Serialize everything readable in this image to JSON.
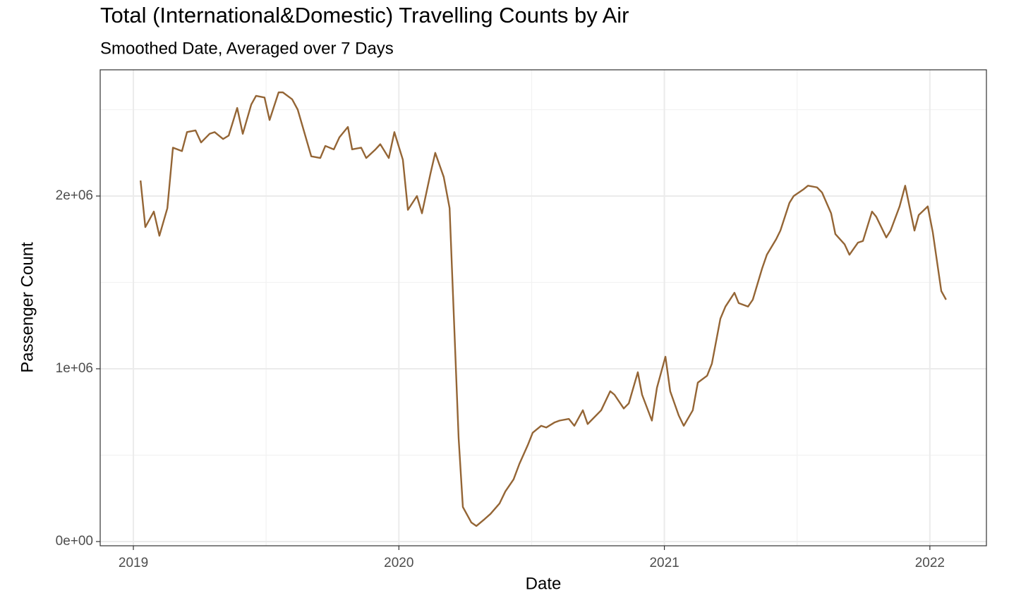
{
  "chart_data": {
    "type": "line",
    "title": "Total (International&Domestic) Travelling Counts by Air",
    "subtitle": "Smoothed Date, Averaged over 7 Days",
    "x_label": "Date",
    "y_label": "Passenger Count",
    "xlim": [
      2018.875,
      2022.213
    ],
    "xticks": [
      2019,
      2020,
      2021,
      2022
    ],
    "ylim": [
      -24490,
      2730600
    ],
    "yticks": [
      {
        "value": 0,
        "label": "0e+00"
      },
      {
        "value": 1000000,
        "label": "1e+06"
      },
      {
        "value": 2000000,
        "label": "2e+06"
      }
    ],
    "grid": true,
    "series": [
      {
        "color": "#946535",
        "x": [
          2019.027,
          2019.045,
          2019.077,
          2019.098,
          2019.128,
          2019.149,
          2019.183,
          2019.202,
          2019.234,
          2019.255,
          2019.287,
          2019.306,
          2019.338,
          2019.359,
          2019.391,
          2019.412,
          2019.444,
          2019.462,
          2019.494,
          2019.513,
          2019.547,
          2019.563,
          2019.598,
          2019.619,
          2019.67,
          2019.704,
          2019.723,
          2019.755,
          2019.776,
          2019.808,
          2019.824,
          2019.858,
          2019.877,
          2019.912,
          2019.93,
          2019.962,
          2019.983,
          2020.015,
          2020.034,
          2020.068,
          2020.087,
          2020.119,
          2020.137,
          2020.169,
          2020.191,
          2020.225,
          2020.241,
          2020.273,
          2020.292,
          2020.323,
          2020.345,
          2020.379,
          2020.401,
          2020.432,
          2020.454,
          2020.486,
          2020.504,
          2020.536,
          2020.555,
          2020.587,
          2020.605,
          2020.64,
          2020.661,
          2020.693,
          2020.711,
          2020.743,
          2020.762,
          2020.796,
          2020.812,
          2020.847,
          2020.866,
          2020.9,
          2020.916,
          2020.953,
          2020.972,
          2021.004,
          2021.022,
          2021.054,
          2021.073,
          2021.107,
          2021.126,
          2021.161,
          2021.179,
          2021.211,
          2021.23,
          2021.264,
          2021.28,
          2021.315,
          2021.333,
          2021.368,
          2021.386,
          2021.421,
          2021.437,
          2021.471,
          2021.487,
          2021.525,
          2021.541,
          2021.575,
          2021.594,
          2021.628,
          2021.644,
          2021.679,
          2021.697,
          2021.729,
          2021.748,
          2021.782,
          2021.798,
          2021.836,
          2021.852,
          2021.886,
          2021.907,
          2021.942,
          2021.958,
          2021.992,
          2022.011,
          2022.043,
          2022.061
        ],
        "values": [
          2090000,
          1820000,
          1910000,
          1770000,
          1930000,
          2280000,
          2260000,
          2370000,
          2380000,
          2310000,
          2360000,
          2370000,
          2330000,
          2350000,
          2510000,
          2360000,
          2530000,
          2580000,
          2570000,
          2440000,
          2600000,
          2600000,
          2560000,
          2500000,
          2230000,
          2220000,
          2290000,
          2270000,
          2340000,
          2400000,
          2270000,
          2280000,
          2220000,
          2270000,
          2300000,
          2220000,
          2370000,
          2210000,
          1920000,
          2000000,
          1900000,
          2130000,
          2250000,
          2110000,
          1930000,
          600000,
          200000,
          110000,
          90000,
          130000,
          160000,
          220000,
          290000,
          360000,
          450000,
          560000,
          630000,
          670000,
          660000,
          690000,
          700000,
          710000,
          670000,
          760000,
          680000,
          730000,
          760000,
          870000,
          850000,
          770000,
          800000,
          980000,
          850000,
          700000,
          890000,
          1070000,
          870000,
          730000,
          670000,
          760000,
          920000,
          960000,
          1030000,
          1290000,
          1360000,
          1440000,
          1380000,
          1360000,
          1400000,
          1580000,
          1660000,
          1750000,
          1800000,
          1960000,
          2000000,
          2040000,
          2060000,
          2050000,
          2020000,
          1900000,
          1780000,
          1720000,
          1660000,
          1730000,
          1740000,
          1910000,
          1880000,
          1760000,
          1800000,
          1940000,
          2060000,
          1800000,
          1890000,
          1940000,
          1790000,
          1450000,
          1400000
        ]
      }
    ]
  }
}
